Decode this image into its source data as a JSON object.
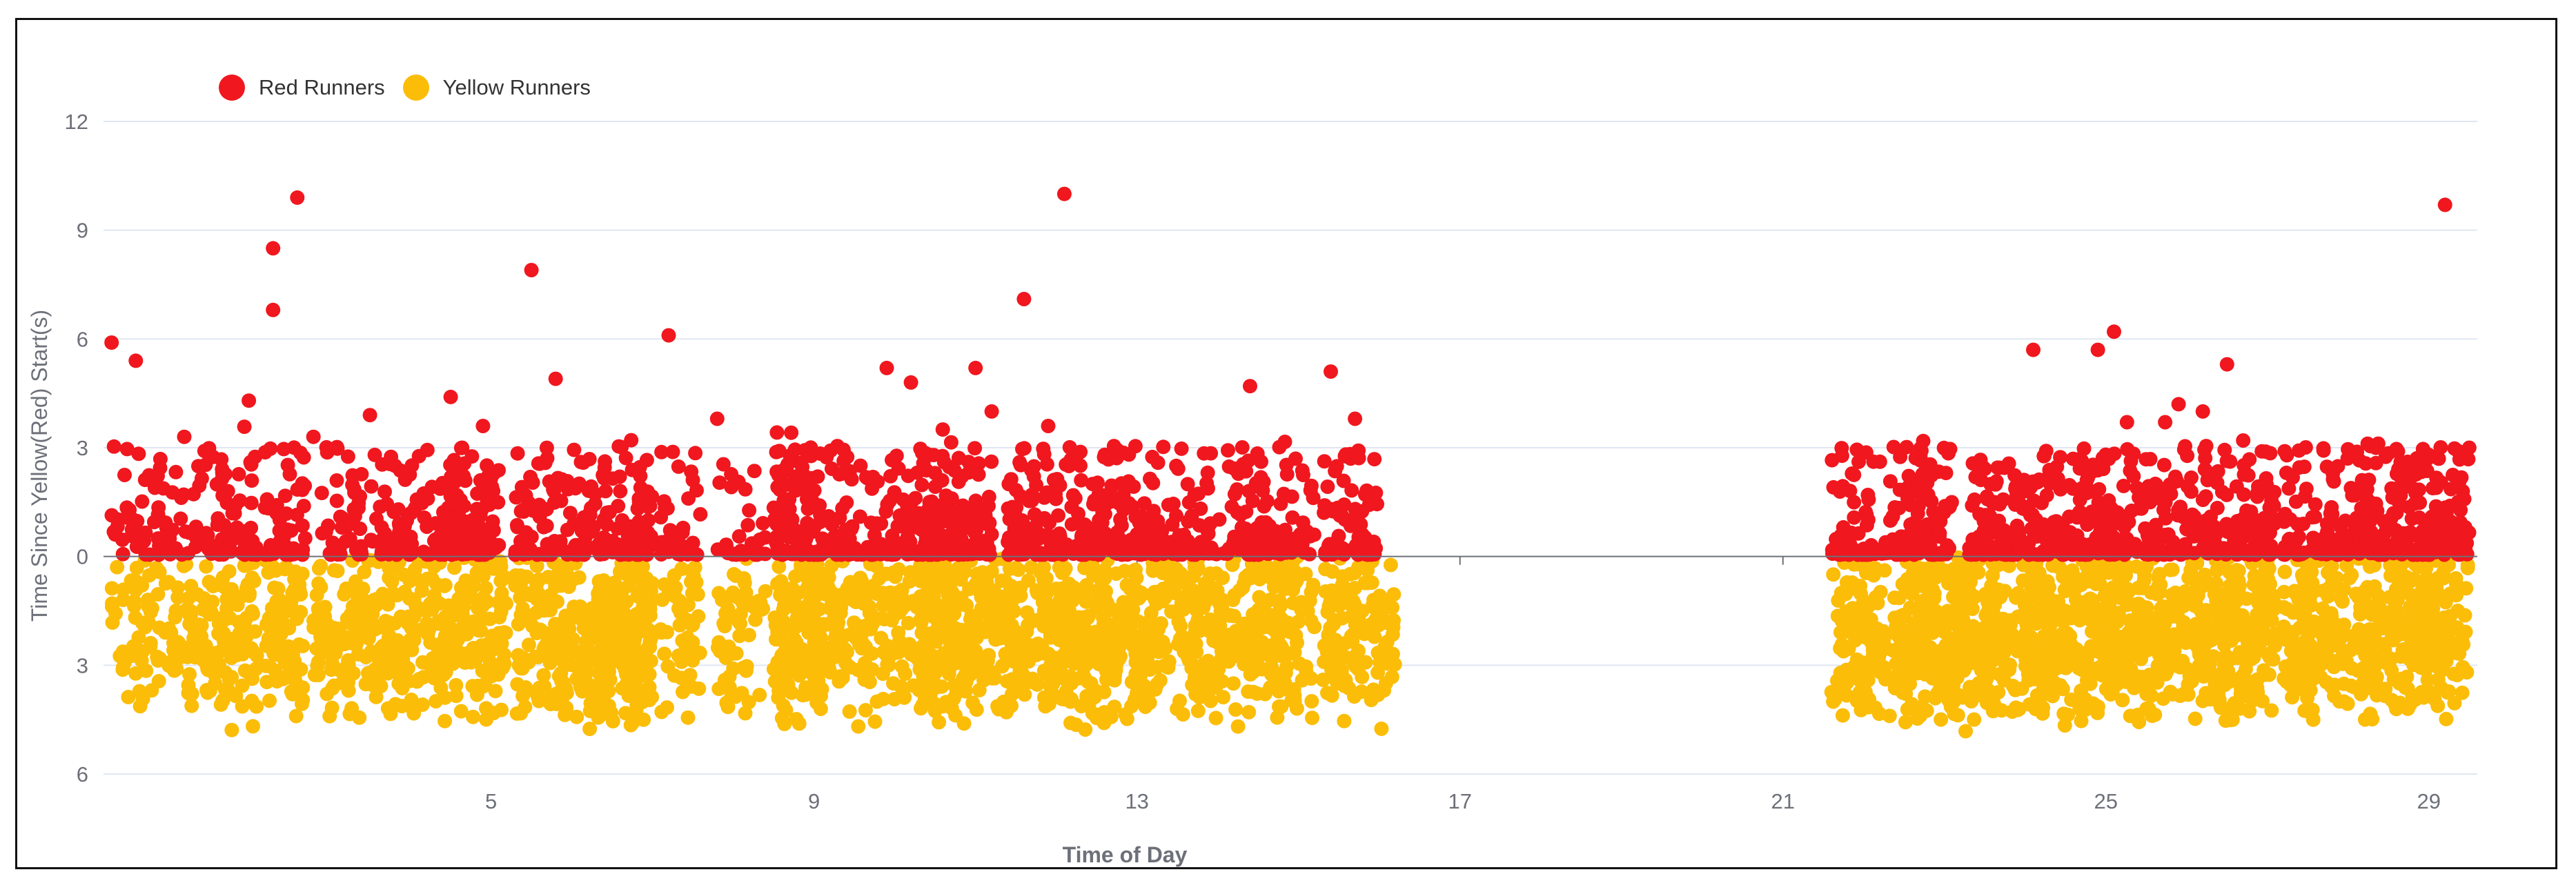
{
  "chart_data": {
    "type": "scatter",
    "xlabel": "Time of Day",
    "ylabel": "Time Since Yellow(Red) Start(s)",
    "xlim": [
      0.2,
      29.6
    ],
    "ylim": [
      -6,
      12
    ],
    "x_ticks": [
      5,
      9,
      13,
      17,
      21,
      25,
      29
    ],
    "y_ticks": [
      {
        "value": 12,
        "label": "12"
      },
      {
        "value": 9,
        "label": "9"
      },
      {
        "value": 6,
        "label": "6"
      },
      {
        "value": 3,
        "label": "3"
      },
      {
        "value": 0,
        "label": "0"
      },
      {
        "value": -3,
        "label": "3"
      },
      {
        "value": -6,
        "label": "6"
      }
    ],
    "grid": true,
    "legend_position": "top-left",
    "series": [
      {
        "name": "Red Runners",
        "color": "#f0171e",
        "clusters": [
          {
            "x_start": 0.3,
            "x_end": 1.5,
            "count": 80
          },
          {
            "x_start": 1.5,
            "x_end": 2.1,
            "count": 55
          },
          {
            "x_start": 2.2,
            "x_end": 2.7,
            "count": 50
          },
          {
            "x_start": 2.9,
            "x_end": 3.4,
            "count": 45
          },
          {
            "x_start": 3.5,
            "x_end": 4.6,
            "count": 100
          },
          {
            "x_start": 4.5,
            "x_end": 5.1,
            "count": 80
          },
          {
            "x_start": 5.3,
            "x_end": 6.1,
            "count": 75
          },
          {
            "x_start": 6.1,
            "x_end": 7.0,
            "count": 110
          },
          {
            "x_start": 7.1,
            "x_end": 7.6,
            "count": 40
          },
          {
            "x_start": 7.8,
            "x_end": 8.4,
            "count": 30
          },
          {
            "x_start": 8.5,
            "x_end": 9.0,
            "count": 110
          },
          {
            "x_start": 9.0,
            "x_end": 9.9,
            "count": 80
          },
          {
            "x_start": 9.9,
            "x_end": 10.5,
            "count": 60
          },
          {
            "x_start": 10.3,
            "x_end": 11.2,
            "count": 140
          },
          {
            "x_start": 11.4,
            "x_end": 12.2,
            "count": 100
          },
          {
            "x_start": 12.2,
            "x_end": 13.0,
            "count": 110
          },
          {
            "x_start": 13.0,
            "x_end": 13.8,
            "count": 80
          },
          {
            "x_start": 13.8,
            "x_end": 14.5,
            "count": 60
          },
          {
            "x_start": 14.5,
            "x_end": 15.2,
            "count": 60
          },
          {
            "x_start": 15.3,
            "x_end": 16.0,
            "count": 70
          },
          {
            "x_start": 21.6,
            "x_end": 22.5,
            "count": 90
          },
          {
            "x_start": 22.5,
            "x_end": 23.1,
            "count": 90
          },
          {
            "x_start": 23.3,
            "x_end": 24.2,
            "count": 130
          },
          {
            "x_start": 24.2,
            "x_end": 25.3,
            "count": 160
          },
          {
            "x_start": 25.3,
            "x_end": 26.1,
            "count": 100
          },
          {
            "x_start": 26.2,
            "x_end": 27.1,
            "count": 120
          },
          {
            "x_start": 27.2,
            "x_end": 28.3,
            "count": 120
          },
          {
            "x_start": 28.2,
            "x_end": 29.2,
            "count": 150
          },
          {
            "x_start": 29.2,
            "x_end": 29.5,
            "count": 35
          }
        ],
        "outliers": [
          [
            0.3,
            5.9
          ],
          [
            0.6,
            5.4
          ],
          [
            1.2,
            3.3
          ],
          [
            2.0,
            4.3
          ],
          [
            2.3,
            8.5
          ],
          [
            2.3,
            6.8
          ],
          [
            2.6,
            9.9
          ],
          [
            2.8,
            3.3
          ],
          [
            3.5,
            3.9
          ],
          [
            4.5,
            4.4
          ],
          [
            4.9,
            3.6
          ],
          [
            5.5,
            7.9
          ],
          [
            5.8,
            4.9
          ],
          [
            7.2,
            6.1
          ],
          [
            7.8,
            3.8
          ],
          [
            9.9,
            5.2
          ],
          [
            10.2,
            4.8
          ],
          [
            11.0,
            5.2
          ],
          [
            11.2,
            4.0
          ],
          [
            11.6,
            7.1
          ],
          [
            11.9,
            3.6
          ],
          [
            12.1,
            10.0
          ],
          [
            14.4,
            4.7
          ],
          [
            15.4,
            5.1
          ],
          [
            15.7,
            3.8
          ],
          [
            24.1,
            5.7
          ],
          [
            24.9,
            5.7
          ],
          [
            25.1,
            6.2
          ],
          [
            25.9,
            4.2
          ],
          [
            26.2,
            4.0
          ],
          [
            26.5,
            5.3
          ],
          [
            26.7,
            3.2
          ],
          [
            29.2,
            9.7
          ],
          [
            29.5,
            3.0
          ]
        ]
      },
      {
        "name": "Yellow Runners",
        "color": "#fbbd08",
        "clusters": [
          {
            "x_start": 0.3,
            "x_end": 1.5,
            "count": 120
          },
          {
            "x_start": 1.5,
            "x_end": 2.1,
            "count": 90
          },
          {
            "x_start": 2.2,
            "x_end": 2.7,
            "count": 80
          },
          {
            "x_start": 2.8,
            "x_end": 3.6,
            "count": 110
          },
          {
            "x_start": 3.6,
            "x_end": 4.6,
            "count": 150
          },
          {
            "x_start": 4.6,
            "x_end": 5.2,
            "count": 90
          },
          {
            "x_start": 5.3,
            "x_end": 6.1,
            "count": 130
          },
          {
            "x_start": 6.1,
            "x_end": 7.0,
            "count": 200
          },
          {
            "x_start": 7.1,
            "x_end": 7.6,
            "count": 50
          },
          {
            "x_start": 7.8,
            "x_end": 8.4,
            "count": 60
          },
          {
            "x_start": 8.5,
            "x_end": 9.1,
            "count": 140
          },
          {
            "x_start": 9.0,
            "x_end": 9.9,
            "count": 120
          },
          {
            "x_start": 9.9,
            "x_end": 10.5,
            "count": 80
          },
          {
            "x_start": 10.3,
            "x_end": 11.3,
            "count": 200
          },
          {
            "x_start": 11.3,
            "x_end": 12.2,
            "count": 160
          },
          {
            "x_start": 12.1,
            "x_end": 13.0,
            "count": 170
          },
          {
            "x_start": 13.0,
            "x_end": 13.8,
            "count": 120
          },
          {
            "x_start": 13.8,
            "x_end": 14.5,
            "count": 110
          },
          {
            "x_start": 14.5,
            "x_end": 15.2,
            "count": 110
          },
          {
            "x_start": 15.3,
            "x_end": 16.2,
            "count": 130
          },
          {
            "x_start": 21.6,
            "x_end": 22.4,
            "count": 110
          },
          {
            "x_start": 22.4,
            "x_end": 23.2,
            "count": 200
          },
          {
            "x_start": 23.2,
            "x_end": 24.2,
            "count": 190
          },
          {
            "x_start": 24.2,
            "x_end": 25.3,
            "count": 230
          },
          {
            "x_start": 25.3,
            "x_end": 26.2,
            "count": 160
          },
          {
            "x_start": 26.2,
            "x_end": 27.1,
            "count": 190
          },
          {
            "x_start": 27.2,
            "x_end": 28.3,
            "count": 170
          },
          {
            "x_start": 28.2,
            "x_end": 29.2,
            "count": 200
          },
          {
            "x_start": 29.2,
            "x_end": 29.5,
            "count": 40
          }
        ],
        "value_range": [
          -4.9,
          0
        ]
      }
    ]
  }
}
